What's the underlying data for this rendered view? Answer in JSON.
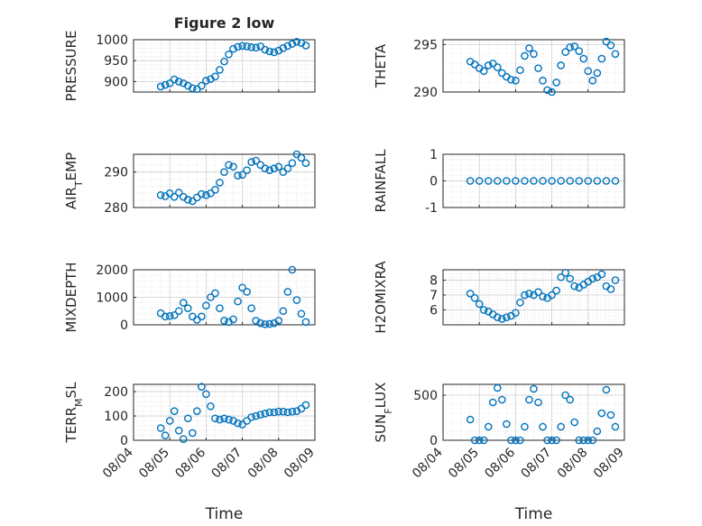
{
  "chart_data": {
    "title": "Figure 2 low",
    "type": "scatter",
    "marker": "open-circle",
    "colors": {
      "marker": "#0072BD",
      "axes": "#262626",
      "grid": "#dcdcdc",
      "background": "#ffffff"
    },
    "xlabel": "Time",
    "xticks": [
      "08/04",
      "08/05",
      "08/06",
      "08/07",
      "08/08",
      "08/09"
    ],
    "xlim": [
      "08/04",
      "08/09"
    ],
    "grid": "on (major and minor)",
    "panels": [
      {
        "ylabel": "PRESSURE",
        "ylim": [
          875,
          1000
        ],
        "yticks": [
          "900",
          "950",
          "1000"
        ],
        "x": [
          "08/04 18:00",
          "08/04 21:00",
          "08/05 00:00",
          "08/05 03:00",
          "08/05 06:00",
          "08/05 09:00",
          "08/05 12:00",
          "08/05 15:00",
          "08/05 18:00",
          "08/05 21:00",
          "08/06 00:00",
          "08/06 03:00",
          "08/06 06:00",
          "08/06 09:00",
          "08/06 12:00",
          "08/06 15:00",
          "08/06 18:00",
          "08/06 21:00",
          "08/07 00:00",
          "08/07 03:00",
          "08/07 06:00",
          "08/07 09:00",
          "08/07 12:00",
          "08/07 15:00",
          "08/07 18:00",
          "08/07 21:00",
          "08/08 00:00",
          "08/08 03:00",
          "08/08 06:00",
          "08/08 09:00",
          "08/08 12:00",
          "08/08 15:00",
          "08/08 18:00"
        ],
        "y": [
          888,
          892,
          896,
          905,
          900,
          896,
          890,
          884,
          882,
          890,
          902,
          906,
          912,
          928,
          948,
          965,
          978,
          983,
          985,
          984,
          982,
          981,
          984,
          976,
          972,
          970,
          974,
          980,
          985,
          990,
          995,
          992,
          986
        ]
      },
      {
        "ylabel": "AIR_TEMP",
        "ylim": [
          280,
          295
        ],
        "yticks": [
          "280",
          "290"
        ],
        "x": [
          "08/04 18:00",
          "08/04 21:00",
          "08/05 00:00",
          "08/05 03:00",
          "08/05 06:00",
          "08/05 09:00",
          "08/05 12:00",
          "08/05 15:00",
          "08/05 18:00",
          "08/05 21:00",
          "08/06 00:00",
          "08/06 03:00",
          "08/06 06:00",
          "08/06 09:00",
          "08/06 12:00",
          "08/06 15:00",
          "08/06 18:00",
          "08/06 21:00",
          "08/07 00:00",
          "08/07 03:00",
          "08/07 06:00",
          "08/07 09:00",
          "08/07 12:00",
          "08/07 15:00",
          "08/07 18:00",
          "08/07 21:00",
          "08/08 00:00",
          "08/08 03:00",
          "08/08 06:00",
          "08/08 09:00",
          "08/08 12:00",
          "08/08 15:00",
          "08/08 18:00"
        ],
        "y": [
          283.5,
          283.2,
          284.0,
          283.0,
          284.2,
          283.0,
          282.2,
          281.8,
          282.8,
          283.8,
          283.5,
          284.0,
          285.0,
          287.0,
          290.0,
          292.0,
          291.5,
          289.0,
          289.2,
          290.5,
          292.8,
          293.2,
          292.0,
          291.0,
          290.5,
          291.0,
          291.5,
          290.0,
          291.0,
          292.5,
          295.0,
          294.0,
          292.5
        ]
      },
      {
        "ylabel": "MIXDEPTH",
        "ylim": [
          0,
          2000
        ],
        "yticks": [
          "0",
          "1000",
          "2000"
        ],
        "x": [
          "08/04 18:00",
          "08/04 21:00",
          "08/05 00:00",
          "08/05 03:00",
          "08/05 06:00",
          "08/05 09:00",
          "08/05 12:00",
          "08/05 15:00",
          "08/05 18:00",
          "08/05 21:00",
          "08/06 00:00",
          "08/06 03:00",
          "08/06 06:00",
          "08/06 09:00",
          "08/06 12:00",
          "08/06 15:00",
          "08/06 18:00",
          "08/06 21:00",
          "08/07 00:00",
          "08/07 03:00",
          "08/07 06:00",
          "08/07 09:00",
          "08/07 12:00",
          "08/07 15:00",
          "08/07 18:00",
          "08/07 21:00",
          "08/08 00:00",
          "08/08 03:00",
          "08/08 06:00",
          "08/08 09:00",
          "08/08 12:00",
          "08/08 15:00",
          "08/08 18:00"
        ],
        "y": [
          420,
          300,
          320,
          350,
          500,
          800,
          600,
          300,
          180,
          300,
          700,
          1000,
          1150,
          600,
          150,
          100,
          200,
          850,
          1350,
          1200,
          600,
          150,
          60,
          20,
          30,
          60,
          150,
          500,
          1200,
          2000,
          900,
          400,
          100
        ]
      },
      {
        "ylabel": "TERR_MSL",
        "ylim": [
          0,
          230
        ],
        "yticks": [
          "0",
          "100",
          "200"
        ],
        "x": [
          "08/04 18:00",
          "08/04 21:00",
          "08/05 00:00",
          "08/05 03:00",
          "08/05 06:00",
          "08/05 09:00",
          "08/05 12:00",
          "08/05 15:00",
          "08/05 18:00",
          "08/05 21:00",
          "08/06 00:00",
          "08/06 03:00",
          "08/06 06:00",
          "08/06 09:00",
          "08/06 12:00",
          "08/06 15:00",
          "08/06 18:00",
          "08/06 21:00",
          "08/07 00:00",
          "08/07 03:00",
          "08/07 06:00",
          "08/07 09:00",
          "08/07 12:00",
          "08/07 15:00",
          "08/07 18:00",
          "08/07 21:00",
          "08/08 00:00",
          "08/08 03:00",
          "08/08 06:00",
          "08/08 09:00",
          "08/08 12:00",
          "08/08 15:00",
          "08/08 18:00"
        ],
        "y": [
          50,
          20,
          80,
          120,
          40,
          5,
          90,
          30,
          120,
          220,
          190,
          140,
          90,
          85,
          90,
          85,
          80,
          70,
          65,
          80,
          95,
          100,
          105,
          110,
          115,
          115,
          118,
          118,
          115,
          118,
          120,
          130,
          145
        ]
      },
      {
        "ylabel": "THETA",
        "ylim": [
          290,
          295.5
        ],
        "yticks": [
          "290",
          "295"
        ],
        "x": [
          "08/04 18:00",
          "08/04 21:00",
          "08/05 00:00",
          "08/05 03:00",
          "08/05 06:00",
          "08/05 09:00",
          "08/05 12:00",
          "08/05 15:00",
          "08/05 18:00",
          "08/05 21:00",
          "08/06 00:00",
          "08/06 03:00",
          "08/06 06:00",
          "08/06 09:00",
          "08/06 12:00",
          "08/06 15:00",
          "08/06 18:00",
          "08/06 21:00",
          "08/07 00:00",
          "08/07 03:00",
          "08/07 06:00",
          "08/07 09:00",
          "08/07 12:00",
          "08/07 15:00",
          "08/07 18:00",
          "08/07 21:00",
          "08/08 00:00",
          "08/08 03:00",
          "08/08 06:00",
          "08/08 09:00",
          "08/08 12:00",
          "08/08 15:00",
          "08/08 18:00"
        ],
        "y": [
          293.2,
          292.9,
          292.5,
          292.2,
          292.8,
          293.0,
          292.6,
          292.0,
          291.6,
          291.3,
          291.2,
          292.3,
          293.8,
          294.6,
          294.0,
          292.5,
          291.2,
          290.2,
          290.0,
          291.0,
          292.8,
          294.2,
          294.7,
          294.8,
          294.3,
          293.5,
          292.2,
          291.2,
          292.0,
          293.5,
          295.3,
          294.9,
          294.0
        ]
      },
      {
        "ylabel": "RAINFALL",
        "ylim": [
          -1,
          1
        ],
        "yticks": [
          "-1",
          "0",
          "1"
        ],
        "x": [
          "08/04 18:00",
          "08/05 00:00",
          "08/05 06:00",
          "08/05 12:00",
          "08/05 18:00",
          "08/06 00:00",
          "08/06 06:00",
          "08/06 12:00",
          "08/06 18:00",
          "08/07 00:00",
          "08/07 06:00",
          "08/07 12:00",
          "08/07 18:00",
          "08/08 00:00",
          "08/08 06:00",
          "08/08 12:00",
          "08/08 18:00"
        ],
        "y": [
          0,
          0,
          0,
          0,
          0,
          0,
          0,
          0,
          0,
          0,
          0,
          0,
          0,
          0,
          0,
          0,
          0
        ]
      },
      {
        "ylabel": "H2OMIXRA",
        "ylim": [
          5,
          8.7
        ],
        "yticks": [
          "6",
          "7",
          "8"
        ],
        "x": [
          "08/04 18:00",
          "08/04 21:00",
          "08/05 00:00",
          "08/05 03:00",
          "08/05 06:00",
          "08/05 09:00",
          "08/05 12:00",
          "08/05 15:00",
          "08/05 18:00",
          "08/05 21:00",
          "08/06 00:00",
          "08/06 03:00",
          "08/06 06:00",
          "08/06 09:00",
          "08/06 12:00",
          "08/06 15:00",
          "08/06 18:00",
          "08/06 21:00",
          "08/07 00:00",
          "08/07 03:00",
          "08/07 06:00",
          "08/07 09:00",
          "08/07 12:00",
          "08/07 15:00",
          "08/07 18:00",
          "08/07 21:00",
          "08/08 00:00",
          "08/08 03:00",
          "08/08 06:00",
          "08/08 09:00",
          "08/08 12:00",
          "08/08 15:00",
          "08/08 18:00"
        ],
        "y": [
          7.1,
          6.8,
          6.4,
          6.0,
          5.9,
          5.7,
          5.5,
          5.4,
          5.5,
          5.6,
          5.8,
          6.5,
          7.0,
          7.1,
          7.0,
          7.2,
          6.9,
          6.8,
          7.0,
          7.3,
          8.2,
          8.5,
          8.1,
          7.6,
          7.5,
          7.7,
          7.9,
          8.1,
          8.2,
          8.4,
          7.6,
          7.4,
          8.0
        ]
      },
      {
        "ylabel": "SUN_FLUX",
        "ylim": [
          0,
          620
        ],
        "yticks": [
          "0",
          "500"
        ],
        "x": [
          "08/04 18:00",
          "08/04 21:00",
          "08/05 00:00",
          "08/05 03:00",
          "08/05 06:00",
          "08/05 09:00",
          "08/05 12:00",
          "08/05 15:00",
          "08/05 18:00",
          "08/05 21:00",
          "08/06 00:00",
          "08/06 03:00",
          "08/06 06:00",
          "08/06 09:00",
          "08/06 12:00",
          "08/06 15:00",
          "08/06 18:00",
          "08/06 21:00",
          "08/07 00:00",
          "08/07 03:00",
          "08/07 06:00",
          "08/07 09:00",
          "08/07 12:00",
          "08/07 15:00",
          "08/07 18:00",
          "08/07 21:00",
          "08/08 00:00",
          "08/08 03:00",
          "08/08 06:00",
          "08/08 09:00",
          "08/08 12:00",
          "08/08 15:00",
          "08/08 18:00"
        ],
        "y": [
          230,
          0,
          0,
          0,
          150,
          420,
          580,
          450,
          180,
          0,
          0,
          0,
          150,
          450,
          570,
          420,
          150,
          0,
          0,
          0,
          150,
          500,
          450,
          200,
          0,
          0,
          0,
          0,
          100,
          300,
          560,
          280,
          150
        ]
      }
    ]
  }
}
